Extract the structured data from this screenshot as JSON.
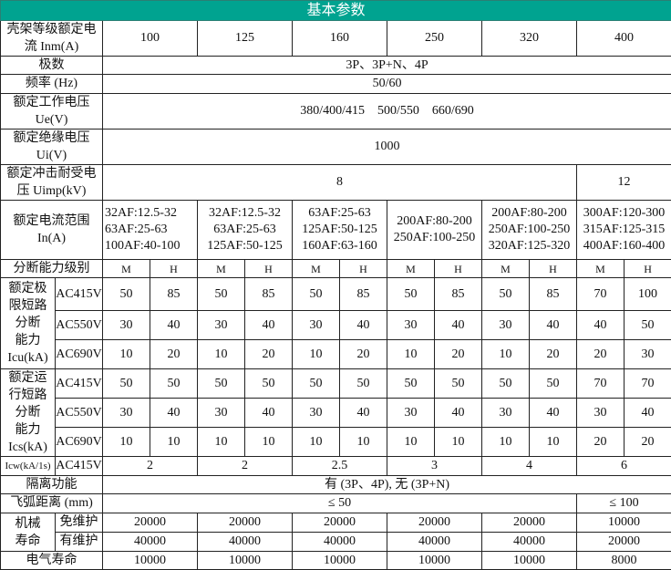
{
  "title": "基本参数",
  "frame": {
    "label": "壳架等级额定电流 Inm(A)",
    "label_l1": "壳架等级额定电",
    "label_l2": "流 Inm(A)",
    "values": [
      "100",
      "125",
      "160",
      "250",
      "320",
      "400"
    ]
  },
  "poles": {
    "label": "极数",
    "value": "3P、3P+N、4P"
  },
  "freq": {
    "label": "频率 (Hz)",
    "value": "50/60"
  },
  "ue": {
    "label_l1": "额定工作电压",
    "label_l2": "Ue(V)",
    "value": "380/400/415    500/550    660/690"
  },
  "ui": {
    "label_l1": "额定绝缘电压",
    "label_l2": "Ui(V)",
    "value": "1000"
  },
  "uimp": {
    "label_l1": "额定冲击耐受电",
    "label_l2": "压 Uimp(kV)",
    "value_a": "8",
    "value_b": "12"
  },
  "in_range": {
    "label_l1": "额定电流范围",
    "label_l2": "In(A)",
    "values": [
      [
        "32AF:12.5-32",
        "63AF:25-63",
        "100AF:40-100"
      ],
      [
        "32AF:12.5-32",
        "63AF:25-63",
        "125AF:50-125"
      ],
      [
        "63AF:25-63",
        "125AF:50-125",
        "160AF:63-160"
      ],
      [
        "200AF:80-200",
        "250AF:100-250"
      ],
      [
        "200AF:80-200",
        "250AF:100-250",
        "320AF:125-320"
      ],
      [
        "300AF:120-300",
        "315AF:125-315",
        "400AF:160-400"
      ]
    ]
  },
  "breaking_level": {
    "label": "分断能力级别",
    "values": [
      "M",
      "H",
      "M",
      "H",
      "M",
      "H",
      "M",
      "H",
      "M",
      "H",
      "M",
      "H"
    ]
  },
  "icu": {
    "label": [
      "额定极",
      "限短路",
      "分断",
      "能力",
      "Icu(kA)"
    ],
    "rows": [
      {
        "voltage": "AC415V",
        "values": [
          "50",
          "85",
          "50",
          "85",
          "50",
          "85",
          "50",
          "85",
          "50",
          "85",
          "70",
          "100"
        ]
      },
      {
        "voltage": "AC550V",
        "values": [
          "30",
          "40",
          "30",
          "40",
          "30",
          "40",
          "30",
          "40",
          "30",
          "40",
          "40",
          "50"
        ]
      },
      {
        "voltage": "AC690V",
        "values": [
          "10",
          "20",
          "10",
          "20",
          "10",
          "20",
          "10",
          "20",
          "10",
          "20",
          "20",
          "30"
        ]
      }
    ]
  },
  "ics": {
    "label": [
      "额定运",
      "行短路",
      "分断",
      "能力",
      "Ics(kA)"
    ],
    "rows": [
      {
        "voltage": "AC415V",
        "values": [
          "50",
          "50",
          "50",
          "50",
          "50",
          "50",
          "50",
          "50",
          "50",
          "50",
          "70",
          "70"
        ]
      },
      {
        "voltage": "AC550V",
        "values": [
          "30",
          "40",
          "30",
          "40",
          "30",
          "40",
          "30",
          "40",
          "30",
          "40",
          "30",
          "40"
        ]
      },
      {
        "voltage": "AC690V",
        "values": [
          "10",
          "10",
          "10",
          "10",
          "10",
          "10",
          "10",
          "10",
          "10",
          "10",
          "20",
          "20"
        ]
      }
    ]
  },
  "icw": {
    "label": "Icw(kA/1s)",
    "voltage": "AC415V",
    "values": [
      "2",
      "2",
      "2.5",
      "3",
      "4",
      "6"
    ]
  },
  "isolation": {
    "label": "隔离功能",
    "value": "有 (3P、4P), 无 (3P+N)"
  },
  "arc": {
    "label": "飞弧距离 (mm)",
    "value_a": "≤ 50",
    "value_b": "≤ 100"
  },
  "mech_life": {
    "label_l1": "机械",
    "label_l2": "寿命",
    "free_label": "免维护",
    "free_values": [
      "20000",
      "20000",
      "20000",
      "20000",
      "20000",
      "10000"
    ],
    "maint_label": "有维护",
    "maint_values": [
      "40000",
      "40000",
      "40000",
      "40000",
      "40000",
      "20000"
    ]
  },
  "elec_life": {
    "label": "电气寿命",
    "values": [
      "10000",
      "10000",
      "10000",
      "10000",
      "10000",
      "8000"
    ]
  }
}
